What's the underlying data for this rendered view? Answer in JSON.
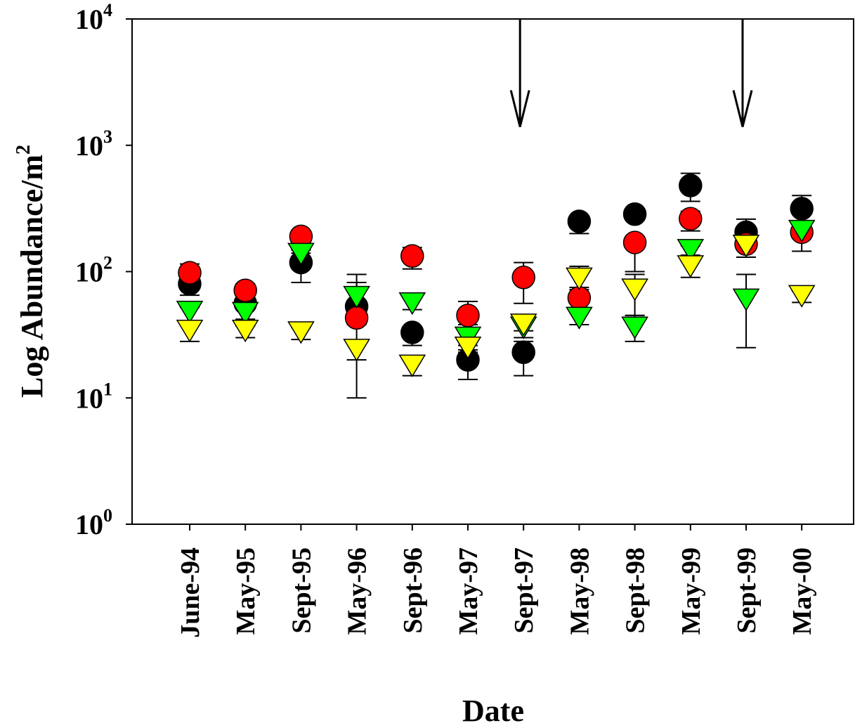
{
  "chart_data": {
    "type": "scatter",
    "title": "",
    "xlabel": "Date",
    "ylabel": "Log Abundance/m",
    "ylabel_superscript": "2",
    "yscale": "log",
    "ylim": [
      1,
      10000
    ],
    "y_ticks": [
      {
        "value": 1,
        "base": "10",
        "exp": "0"
      },
      {
        "value": 10,
        "base": "10",
        "exp": "1"
      },
      {
        "value": 100,
        "base": "10",
        "exp": "2"
      },
      {
        "value": 1000,
        "base": "10",
        "exp": "3"
      },
      {
        "value": 10000,
        "base": "10",
        "exp": "4"
      }
    ],
    "categories": [
      "June-94",
      "May-95",
      "Sept-95",
      "May-96",
      "Sept-96",
      "May-97",
      "Sept-97",
      "May-98",
      "Sept-98",
      "May-99",
      "Sept-99",
      "May-00"
    ],
    "grid": false,
    "legend": "none",
    "annotations": [
      {
        "type": "down-arrow",
        "category": "Sept-97",
        "from": 10000,
        "to": 1400
      },
      {
        "type": "down-arrow",
        "category": "Sept-99",
        "from": 10000,
        "to": 1400
      }
    ],
    "series": [
      {
        "marker": "circle",
        "color": "#000000",
        "values": [
          80,
          56,
          118,
          53,
          33,
          20,
          23,
          250,
          285,
          480,
          205,
          315
        ],
        "err_up": [
          96,
          62,
          140,
          95,
          36,
          24,
          28,
          270,
          300,
          600,
          260,
          400
        ],
        "err_down": [
          65,
          50,
          82,
          20,
          26,
          14,
          15,
          200,
          270,
          360,
          155,
          240
        ]
      },
      {
        "marker": "circle",
        "color": "#ff0000",
        "values": [
          98,
          71,
          190,
          43,
          133,
          45,
          90,
          62,
          170,
          262,
          165,
          205
        ],
        "err_up": [
          115,
          80,
          200,
          48,
          155,
          58,
          118,
          72,
          180,
          300,
          185,
          230
        ],
        "err_down": [
          85,
          62,
          175,
          38,
          105,
          38,
          56,
          52,
          100,
          210,
          130,
          145
        ]
      },
      {
        "marker": "triangle-down",
        "color": "#00ff00",
        "values": [
          48,
          47,
          138,
          63,
          56,
          30,
          36,
          43,
          36,
          148,
          60,
          210
        ],
        "err_up": [
          52,
          52,
          148,
          82,
          62,
          34,
          42,
          48,
          45,
          160,
          95,
          230
        ],
        "err_down": [
          40,
          42,
          130,
          48,
          50,
          26,
          30,
          38,
          28,
          135,
          25,
          200
        ]
      },
      {
        "marker": "triangle-down",
        "color": "#ffff00",
        "values": [
          34,
          34,
          33,
          24,
          18,
          25,
          38,
          88,
          72,
          110,
          160,
          64
        ],
        "err_up": [
          38,
          37,
          36,
          27,
          21,
          28,
          42,
          110,
          95,
          125,
          170,
          70
        ],
        "err_down": [
          28,
          30,
          29,
          10,
          15,
          23,
          34,
          75,
          45,
          90,
          150,
          57
        ]
      }
    ]
  }
}
